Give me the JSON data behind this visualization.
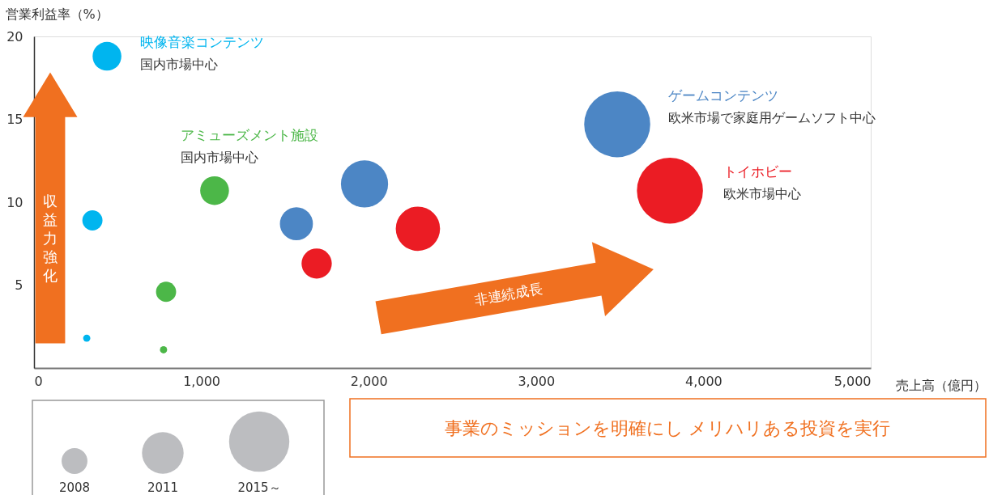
{
  "chart_data": {
    "type": "bubble",
    "xlabel": "売上高（億円）",
    "ylabel": "営業利益率（%）",
    "xlim": [
      0,
      5000
    ],
    "xticks": [
      0,
      {
        "value": 1000,
        "label": "1,000"
      },
      {
        "value": 2000,
        "label": "2,000"
      },
      {
        "value": 3000,
        "label": "3,000"
      },
      {
        "value": 4000,
        "label": "4,000"
      },
      {
        "value": 5000,
        "label": "5,000"
      }
    ],
    "ylim": [
      0,
      20
    ],
    "yticks": [
      5,
      10,
      15,
      20
    ],
    "grid": false,
    "legend": false,
    "series": [
      {
        "name": "映像音楽コンテンツ",
        "color": "#00b5ef",
        "x": [
          315,
          349,
          436
        ],
        "values": [
          1.8,
          8.9,
          18.8
        ],
        "sizes": [
          0.012,
          0.093,
          0.19
        ]
      },
      {
        "name": "アミューズメント施設",
        "color": "#4cb748",
        "x": [
          774,
          789,
          1079
        ],
        "values": [
          1.1,
          4.6,
          10.7
        ],
        "sizes": [
          0.012,
          0.093,
          0.19
        ]
      },
      {
        "name": "ゲームコンテンツ",
        "color": "#4c86c5",
        "x": [
          1568,
          1975,
          3485
        ],
        "values": [
          8.7,
          11.1,
          14.7
        ],
        "sizes": [
          0.25,
          0.51,
          1
        ]
      },
      {
        "name": "トイホビー",
        "color": "#eb1c24",
        "x": [
          1689,
          2294,
          3800
        ],
        "values": [
          6.3,
          8.4,
          10.7
        ],
        "sizes": [
          0.21,
          0.45,
          1
        ]
      }
    ],
    "annotations": [
      "国内市場中心",
      "国内市場中心",
      "欧米市場で家庭用ゲームソフト中心",
      "欧米市場中心",
      "収益力強化",
      "非連続成長",
      "事業のミッションを明確にし メリハリある投資を実行",
      "2008",
      "2011",
      "2015～"
    ]
  }
}
